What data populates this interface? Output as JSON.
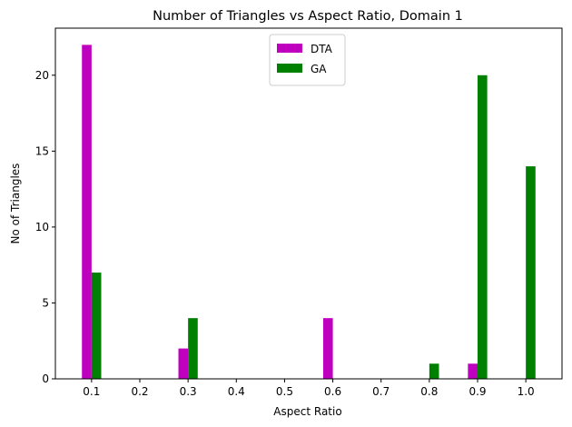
{
  "chart_data": {
    "type": "bar",
    "title": "Number of Triangles vs Aspect Ratio, Domain 1",
    "xlabel": "Aspect Ratio",
    "ylabel": "No of Triangles",
    "xlim": [
      0.025,
      1.075
    ],
    "ylim": [
      0,
      23.1
    ],
    "xticks": [
      0.1,
      0.2,
      0.3,
      0.4,
      0.5,
      0.6,
      0.7,
      0.8,
      0.9,
      1.0
    ],
    "xtick_labels": [
      "0.1",
      "0.2",
      "0.3",
      "0.4",
      "0.5",
      "0.6",
      "0.7",
      "0.8",
      "0.9",
      "1.0"
    ],
    "yticks": [
      0,
      5,
      10,
      15,
      20
    ],
    "ytick_labels": [
      "0",
      "5",
      "10",
      "15",
      "20"
    ],
    "bar_width": 0.02,
    "legend": {
      "position": "upper center"
    },
    "grid": false,
    "series": [
      {
        "name": "DTA",
        "color": "#bf00bf",
        "x": [
          0.09,
          0.29,
          0.59,
          0.89
        ],
        "values": [
          22,
          2,
          4,
          1
        ]
      },
      {
        "name": "GA",
        "color": "#008000",
        "x": [
          0.11,
          0.31,
          0.81,
          0.91,
          1.01
        ],
        "values": [
          7,
          4,
          1,
          20,
          14
        ]
      }
    ]
  }
}
